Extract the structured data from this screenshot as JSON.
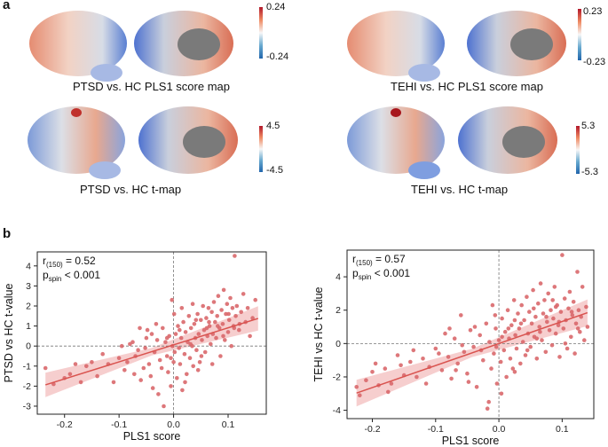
{
  "panel_a_label": "a",
  "panel_b_label": "b",
  "brain_maps": [
    {
      "caption": "PTSD vs. HC PLS1 score map",
      "cbar_max": "0.24",
      "cbar_min": "-0.24"
    },
    {
      "caption": "TEHI vs. HC PLS1 score map",
      "cbar_max": "0.23",
      "cbar_min": "-0.23"
    },
    {
      "caption": "PTSD vs. HC t-map",
      "cbar_max": "4.5",
      "cbar_min": "-4.5"
    },
    {
      "caption": "TEHI vs. HC t-map",
      "cbar_max": "5.3",
      "cbar_min": "-5.3"
    }
  ],
  "colors": {
    "point": "#d9686b",
    "line": "#d9534f",
    "band": "#f4c2c2",
    "ref": "#777777"
  },
  "chart_data": [
    {
      "type": "scatter",
      "xlabel": "PLS1 score",
      "ylabel": "PTSD vs HC t-value",
      "xlim": [
        -0.25,
        0.17
      ],
      "ylim": [
        -3.4,
        4.7
      ],
      "xticks": [
        -0.2,
        -0.1,
        0.0,
        0.1
      ],
      "xtick_labels": [
        "-0.2",
        "-0.1",
        "0.0",
        "0.1"
      ],
      "yticks": [
        -3,
        -2,
        -1,
        0,
        1,
        2,
        3,
        4
      ],
      "ytick_labels": [
        "-3",
        "-2",
        "-1",
        "0",
        "1",
        "2",
        "3",
        "4"
      ],
      "stat_r_label": "r",
      "stat_r_sub": "(150)",
      "stat_r_value": " = 0.52",
      "stat_p_label": "p",
      "stat_p_sub": "spin",
      "stat_p_value": " < 0.001",
      "fit": {
        "slope": 8.5,
        "intercept": 0.06,
        "x_range": [
          -0.235,
          0.155
        ],
        "ci": 0.32
      },
      "points": [
        [
          -0.235,
          -1.1
        ],
        [
          -0.22,
          -1.9
        ],
        [
          -0.2,
          -1.6
        ],
        [
          -0.19,
          -1.4
        ],
        [
          -0.18,
          -0.9
        ],
        [
          -0.17,
          -1.8
        ],
        [
          -0.15,
          -0.8
        ],
        [
          -0.14,
          -1.5
        ],
        [
          -0.12,
          -0.9
        ],
        [
          -0.1,
          -0.6
        ],
        [
          -0.09,
          -1.2
        ],
        [
          -0.08,
          0.1
        ],
        [
          -0.075,
          0.2
        ],
        [
          -0.07,
          -0.5
        ],
        [
          -0.065,
          -0.2
        ],
        [
          -0.06,
          -1.7
        ],
        [
          -0.055,
          -1.1
        ],
        [
          -0.05,
          0.4
        ],
        [
          -0.048,
          0.8
        ],
        [
          -0.045,
          -0.9
        ],
        [
          -0.04,
          0.6
        ],
        [
          -0.038,
          -2.1
        ],
        [
          -0.035,
          -0.3
        ],
        [
          -0.03,
          0.3
        ],
        [
          -0.028,
          -2.4
        ],
        [
          -0.025,
          -0.7
        ],
        [
          -0.02,
          0.9
        ],
        [
          -0.018,
          -3.0
        ],
        [
          -0.015,
          0.2
        ],
        [
          -0.012,
          -0.5
        ],
        [
          -0.01,
          -1.3
        ],
        [
          -0.008,
          0.5
        ],
        [
          -0.005,
          -2.0
        ],
        [
          -0.003,
          2.3
        ],
        [
          -0.002,
          0.0
        ],
        [
          0.0,
          -0.8
        ],
        [
          0.002,
          -0.3
        ],
        [
          0.004,
          0.6
        ],
        [
          0.006,
          -1.6
        ],
        [
          0.008,
          1.0
        ],
        [
          0.01,
          -0.1
        ],
        [
          0.012,
          -0.9
        ],
        [
          0.014,
          0.4
        ],
        [
          0.016,
          -2.2
        ],
        [
          0.018,
          1.2
        ],
        [
          0.02,
          -0.4
        ],
        [
          0.022,
          0.7
        ],
        [
          0.024,
          -1.4
        ],
        [
          0.026,
          0.2
        ],
        [
          0.028,
          1.5
        ],
        [
          0.03,
          -0.6
        ],
        [
          0.032,
          0.9
        ],
        [
          0.034,
          0.0
        ],
        [
          0.036,
          -1.0
        ],
        [
          0.038,
          1.1
        ],
        [
          0.04,
          0.4
        ],
        [
          0.042,
          -0.2
        ],
        [
          0.044,
          1.6
        ],
        [
          0.046,
          0.6
        ],
        [
          0.048,
          -0.8
        ],
        [
          0.05,
          1.3
        ],
        [
          0.052,
          0.3
        ],
        [
          0.054,
          2.0
        ],
        [
          0.056,
          0.8
        ],
        [
          0.058,
          -0.3
        ],
        [
          0.06,
          1.4
        ],
        [
          0.062,
          0.5
        ],
        [
          0.064,
          1.9
        ],
        [
          0.066,
          1.0
        ],
        [
          0.068,
          0.1
        ],
        [
          0.07,
          1.7
        ],
        [
          0.072,
          0.6
        ],
        [
          0.074,
          2.2
        ],
        [
          0.076,
          1.2
        ],
        [
          0.078,
          0.4
        ],
        [
          0.08,
          1.5
        ],
        [
          0.082,
          2.5
        ],
        [
          0.084,
          0.9
        ],
        [
          0.086,
          -0.5
        ],
        [
          0.088,
          1.8
        ],
        [
          0.09,
          1.1
        ],
        [
          0.092,
          2.8
        ],
        [
          0.094,
          0.3
        ],
        [
          0.096,
          1.6
        ],
        [
          0.098,
          2.1
        ],
        [
          0.1,
          0.7
        ],
        [
          0.102,
          1.3
        ],
        [
          0.104,
          2.4
        ],
        [
          0.106,
          0.0
        ],
        [
          0.108,
          1.9
        ],
        [
          0.11,
          1.0
        ],
        [
          0.112,
          4.5
        ],
        [
          0.114,
          1.5
        ],
        [
          0.116,
          2.0
        ],
        [
          0.12,
          0.8
        ],
        [
          0.124,
          1.7
        ],
        [
          0.128,
          2.6
        ],
        [
          0.132,
          1.2
        ],
        [
          0.136,
          1.9
        ],
        [
          0.14,
          0.5
        ],
        [
          0.145,
          1.4
        ],
        [
          0.15,
          2.3
        ],
        [
          -0.16,
          -1.0
        ],
        [
          -0.13,
          -0.4
        ],
        [
          -0.11,
          -1.8
        ],
        [
          -0.095,
          0.0
        ],
        [
          -0.085,
          -0.8
        ],
        [
          -0.072,
          -1.4
        ],
        [
          -0.062,
          0.9
        ],
        [
          -0.052,
          -0.1
        ],
        [
          -0.042,
          -1.5
        ],
        [
          -0.032,
          1.1
        ],
        [
          -0.022,
          -1.1
        ],
        [
          -0.012,
          0.4
        ],
        [
          0.001,
          1.6
        ],
        [
          0.011,
          0.8
        ],
        [
          0.021,
          -1.8
        ],
        [
          0.031,
          0.1
        ],
        [
          0.041,
          1.3
        ],
        [
          0.051,
          -0.5
        ],
        [
          0.061,
          0.9
        ],
        [
          0.071,
          -0.9
        ],
        [
          0.081,
          1.0
        ],
        [
          0.091,
          0.5
        ],
        [
          0.101,
          1.6
        ],
        [
          0.111,
          0.9
        ],
        [
          0.121,
          1.1
        ],
        [
          -0.005,
          -0.6
        ],
        [
          0.015,
          1.9
        ],
        [
          0.035,
          2.1
        ],
        [
          0.045,
          -1.2
        ],
        [
          0.065,
          1.2
        ]
      ]
    },
    {
      "type": "scatter",
      "xlabel": "PLS1 score",
      "ylabel": "TEHI vs HC t-value",
      "xlim": [
        -0.24,
        0.15
      ],
      "ylim": [
        -4.5,
        5.6
      ],
      "xticks": [
        -0.2,
        -0.1,
        0.0,
        0.1
      ],
      "xtick_labels": [
        "-0.2",
        "-0.1",
        "0.0",
        "0.1"
      ],
      "yticks": [
        -4,
        -2,
        0,
        2,
        4
      ],
      "ytick_labels": [
        "-4",
        "-2",
        "0",
        "2",
        "4"
      ],
      "stat_r_label": "r",
      "stat_r_sub": "(150)",
      "stat_r_value": " = 0.57",
      "stat_p_label": "p",
      "stat_p_sub": "spin",
      "stat_p_value": " < 0.001",
      "fit": {
        "slope": 13.2,
        "intercept": 0.0,
        "x_range": [
          -0.225,
          0.14
        ],
        "ci": 0.42
      },
      "points": [
        [
          -0.225,
          -2.6
        ],
        [
          -0.22,
          -3.1
        ],
        [
          -0.21,
          -2.2
        ],
        [
          -0.2,
          -1.7
        ],
        [
          -0.19,
          -2.5
        ],
        [
          -0.18,
          -1.5
        ],
        [
          -0.17,
          -2.4
        ],
        [
          -0.16,
          -0.7
        ],
        [
          -0.15,
          -1.9
        ],
        [
          -0.14,
          -1.1
        ],
        [
          -0.13,
          -2.0
        ],
        [
          -0.12,
          -0.9
        ],
        [
          -0.11,
          -1.4
        ],
        [
          -0.1,
          -0.3
        ],
        [
          -0.09,
          -1.6
        ],
        [
          -0.085,
          0.6
        ],
        [
          -0.08,
          -0.8
        ],
        [
          -0.075,
          -2.1
        ],
        [
          -0.07,
          0.3
        ],
        [
          -0.065,
          -1.2
        ],
        [
          -0.06,
          1.7
        ],
        [
          -0.055,
          -0.5
        ],
        [
          -0.05,
          -1.8
        ],
        [
          -0.045,
          0.8
        ],
        [
          -0.04,
          -0.2
        ],
        [
          -0.035,
          -2.6
        ],
        [
          -0.03,
          0.5
        ],
        [
          -0.025,
          -1.0
        ],
        [
          -0.02,
          1.2
        ],
        [
          -0.018,
          -3.9
        ],
        [
          -0.015,
          0.1
        ],
        [
          -0.012,
          -1.5
        ],
        [
          -0.01,
          2.3
        ],
        [
          -0.008,
          -0.6
        ],
        [
          -0.005,
          0.9
        ],
        [
          -0.003,
          -2.4
        ],
        [
          0.0,
          0.2
        ],
        [
          0.003,
          -1.1
        ],
        [
          0.005,
          1.5
        ],
        [
          0.008,
          -0.4
        ],
        [
          0.01,
          0.7
        ],
        [
          0.012,
          -2.0
        ],
        [
          0.014,
          2.0
        ],
        [
          0.016,
          0.3
        ],
        [
          0.018,
          -0.9
        ],
        [
          0.02,
          1.1
        ],
        [
          0.022,
          -1.5
        ],
        [
          0.024,
          2.6
        ],
        [
          0.026,
          0.5
        ],
        [
          0.028,
          -0.3
        ],
        [
          0.03,
          1.8
        ],
        [
          0.032,
          0.9
        ],
        [
          0.034,
          -1.2
        ],
        [
          0.036,
          2.3
        ],
        [
          0.038,
          0.1
        ],
        [
          0.04,
          1.4
        ],
        [
          0.042,
          -0.7
        ],
        [
          0.044,
          2.8
        ],
        [
          0.046,
          0.6
        ],
        [
          0.048,
          1.9
        ],
        [
          0.05,
          -0.2
        ],
        [
          0.052,
          1.2
        ],
        [
          0.054,
          3.2
        ],
        [
          0.056,
          0.4
        ],
        [
          0.058,
          1.6
        ],
        [
          0.06,
          -0.9
        ],
        [
          0.062,
          2.4
        ],
        [
          0.064,
          1.0
        ],
        [
          0.066,
          3.6
        ],
        [
          0.068,
          0.2
        ],
        [
          0.07,
          1.8
        ],
        [
          0.072,
          2.6
        ],
        [
          0.074,
          -0.5
        ],
        [
          0.076,
          1.3
        ],
        [
          0.078,
          3.0
        ],
        [
          0.08,
          0.8
        ],
        [
          0.082,
          2.0
        ],
        [
          0.084,
          -0.1
        ],
        [
          0.086,
          1.5
        ],
        [
          0.088,
          3.4
        ],
        [
          0.09,
          0.6
        ],
        [
          0.092,
          2.3
        ],
        [
          0.094,
          1.1
        ],
        [
          0.096,
          -0.8
        ],
        [
          0.098,
          1.9
        ],
        [
          0.1,
          5.3
        ],
        [
          0.102,
          0.9
        ],
        [
          0.104,
          2.7
        ],
        [
          0.106,
          1.4
        ],
        [
          0.108,
          -0.3
        ],
        [
          0.11,
          2.1
        ],
        [
          0.112,
          3.1
        ],
        [
          0.114,
          0.4
        ],
        [
          0.116,
          1.7
        ],
        [
          0.118,
          2.5
        ],
        [
          0.12,
          -0.6
        ],
        [
          0.122,
          1.2
        ],
        [
          0.124,
          4.3
        ],
        [
          0.126,
          2.0
        ],
        [
          0.128,
          0.7
        ],
        [
          0.13,
          1.6
        ],
        [
          0.132,
          3.4
        ],
        [
          0.135,
          0.2
        ],
        [
          0.138,
          2.2
        ],
        [
          0.14,
          1.0
        ],
        [
          -0.195,
          -1.2
        ],
        [
          -0.175,
          -2.9
        ],
        [
          -0.155,
          -1.3
        ],
        [
          -0.135,
          -0.4
        ],
        [
          -0.115,
          -2.4
        ],
        [
          -0.095,
          -0.6
        ],
        [
          -0.078,
          0.9
        ],
        [
          -0.068,
          -1.6
        ],
        [
          -0.058,
          -0.1
        ],
        [
          -0.048,
          -2.3
        ],
        [
          -0.038,
          1.0
        ],
        [
          -0.028,
          -0.4
        ],
        [
          -0.016,
          -3.5
        ],
        [
          -0.006,
          1.7
        ],
        [
          0.004,
          -3.0
        ],
        [
          0.015,
          0.9
        ],
        [
          0.025,
          -1.7
        ],
        [
          0.035,
          1.2
        ],
        [
          0.045,
          -0.4
        ],
        [
          0.055,
          2.1
        ],
        [
          0.065,
          0.7
        ],
        [
          0.075,
          1.6
        ],
        [
          0.085,
          2.6
        ],
        [
          0.095,
          1.3
        ],
        [
          0.105,
          0.0
        ],
        [
          0.115,
          1.9
        ],
        [
          0.125,
          0.9
        ],
        [
          0.005,
          0.4
        ],
        [
          0.025,
          1.4
        ],
        [
          0.06,
          0.3
        ],
        [
          0.09,
          2.2
        ],
        [
          -0.004,
          -0.2
        ]
      ]
    }
  ]
}
